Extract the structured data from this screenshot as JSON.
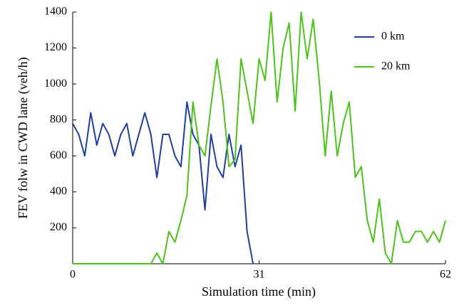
{
  "chart_data": {
    "type": "line",
    "xlabel": "Simulation time (min)",
    "ylabel": "FEV folw in CWD lane (veh/h)",
    "x": [
      0,
      1,
      2,
      3,
      4,
      5,
      6,
      7,
      8,
      9,
      10,
      11,
      12,
      13,
      14,
      15,
      16,
      17,
      18,
      19,
      20,
      21,
      22,
      23,
      24,
      25,
      26,
      27,
      28,
      29,
      30,
      31,
      32,
      33,
      34,
      35,
      36,
      37,
      38,
      39,
      40,
      41,
      42,
      43,
      44,
      45,
      46,
      47,
      48,
      49,
      50,
      51,
      52,
      53,
      54,
      55,
      56,
      57,
      58,
      59,
      60,
      61,
      62
    ],
    "series": [
      {
        "name": "0 km",
        "color": "#1f3f9e",
        "values": [
          780,
          720,
          600,
          840,
          660,
          780,
          720,
          600,
          720,
          780,
          600,
          720,
          840,
          720,
          480,
          720,
          720,
          600,
          540,
          900,
          720,
          660,
          300,
          720,
          540,
          480,
          720,
          540,
          660,
          180,
          0,
          null,
          null,
          null,
          null,
          null,
          null,
          null,
          null,
          null,
          null,
          null,
          null,
          null,
          null,
          null,
          null,
          null,
          null,
          null,
          null,
          null,
          null,
          null,
          null,
          null,
          null,
          null,
          null,
          null,
          null,
          null,
          null
        ]
      },
      {
        "name": "20 km",
        "color": "#4cc31a",
        "values": [
          0,
          0,
          0,
          0,
          0,
          0,
          0,
          0,
          0,
          0,
          0,
          0,
          0,
          0,
          60,
          0,
          180,
          120,
          240,
          380,
          900,
          660,
          600,
          880,
          1140,
          900,
          540,
          580,
          1140,
          960,
          780,
          1140,
          1020,
          1400,
          900,
          1200,
          1340,
          850,
          1400,
          1140,
          1360,
          1020,
          600,
          960,
          600,
          780,
          900,
          480,
          540,
          240,
          120,
          360,
          60,
          0,
          240,
          120,
          120,
          180,
          180,
          120,
          180,
          120,
          240
        ]
      }
    ],
    "xlim": [
      0,
      62
    ],
    "xticks": [
      0,
      31,
      62
    ],
    "ylim": [
      0,
      1400
    ],
    "yticks": [
      200,
      400,
      600,
      800,
      1000,
      1200,
      1400
    ],
    "legend": "upper-right"
  }
}
